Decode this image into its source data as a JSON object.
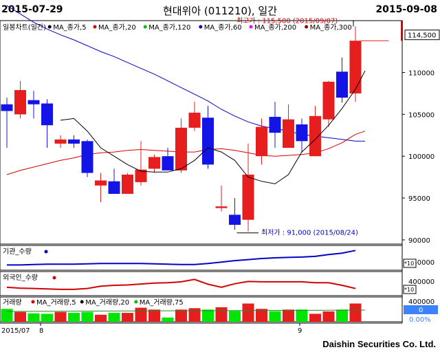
{
  "header": {
    "start_date": "2015-07-29",
    "end_date": "2015-09-08",
    "title": "현대위아 (011210), 일간"
  },
  "legend": {
    "items": [
      {
        "label": "일봉차트(일간)",
        "color": "#000000"
      },
      {
        "label": "MA_종가,5",
        "color": "#000000"
      },
      {
        "label": "MA_종가,20",
        "color": "#d40000"
      },
      {
        "label": "MA_종가,120",
        "color": "#00c000"
      },
      {
        "label": "MA_종가,60",
        "color": "#0000c8"
      },
      {
        "label": "MA_종가,200",
        "color": "#ff00ff"
      },
      {
        "label": "MA_종가,300",
        "color": "#8b0000"
      }
    ]
  },
  "annotations": {
    "high": "최고가 : 115,500 (2015/09/07)",
    "low": "최저가 : 91,000 (2015/08/24)"
  },
  "panels": {
    "inst": {
      "label": "기관_수량"
    },
    "foreign": {
      "label": "외국인_수량"
    },
    "volume": {
      "label": "거래량",
      "legend": [
        "MA_거래량,5",
        "MA_거래량,20",
        "MA_거래량,75"
      ]
    }
  },
  "right_axis": {
    "last_price": "114,500",
    "inst_tick": "550000",
    "inst_unit": "*10",
    "foreign_tick": "400000",
    "foreign_unit": "*10",
    "vol_tick": "400000",
    "vol_box": "0",
    "vol_pct": "0.00%"
  },
  "x_axis": {
    "labels": [
      "2015/07",
      "8",
      "9"
    ]
  },
  "footer": "Daishin Securities Co. Ltd.",
  "colors": {
    "up": "#e61e1e",
    "down": "#1414e6",
    "ma5": "#000000",
    "ma20": "#d40000",
    "ma60": "#0000c8",
    "vol_green": "#00e600",
    "vol_red": "#e61e1e"
  },
  "chart_data": {
    "type": "candlestick",
    "y_ticks": [
      90000,
      95000,
      100000,
      105000,
      110000
    ],
    "y_tick_labels": [
      "90000",
      "95000",
      "100000",
      "105000",
      "110000"
    ],
    "ylim": [
      89500,
      116200
    ],
    "candles": [
      {
        "o": 106200,
        "h": 107000,
        "l": 101000,
        "c": 105400
      },
      {
        "o": 105000,
        "h": 109000,
        "l": 104500,
        "c": 107900
      },
      {
        "o": 106700,
        "h": 107800,
        "l": 104500,
        "c": 106200
      },
      {
        "o": 106300,
        "h": 106800,
        "l": 101000,
        "c": 103700
      },
      {
        "o": 101500,
        "h": 102500,
        "l": 101000,
        "c": 102000
      },
      {
        "o": 102000,
        "h": 102500,
        "l": 101000,
        "c": 101500
      },
      {
        "o": 101800,
        "h": 102000,
        "l": 97500,
        "c": 98000
      },
      {
        "o": 96500,
        "h": 98000,
        "l": 94500,
        "c": 97100
      },
      {
        "o": 97000,
        "h": 98500,
        "l": 95500,
        "c": 95500
      },
      {
        "o": 95500,
        "h": 98000,
        "l": 95500,
        "c": 97800
      },
      {
        "o": 96900,
        "h": 101800,
        "l": 96500,
        "c": 98400
      },
      {
        "o": 98500,
        "h": 100200,
        "l": 98000,
        "c": 99900
      },
      {
        "o": 100000,
        "h": 101000,
        "l": 98500,
        "c": 98300
      },
      {
        "o": 98300,
        "h": 104500,
        "l": 98000,
        "c": 103400
      },
      {
        "o": 103400,
        "h": 106500,
        "l": 103000,
        "c": 105200
      },
      {
        "o": 104600,
        "h": 106000,
        "l": 98500,
        "c": 99000
      },
      {
        "o": 93800,
        "h": 96500,
        "l": 93400,
        "c": 94000
      },
      {
        "o": 93000,
        "h": 95000,
        "l": 91200,
        "c": 91800
      },
      {
        "o": 92400,
        "h": 101500,
        "l": 91000,
        "c": 97800
      },
      {
        "o": 100000,
        "h": 104500,
        "l": 99000,
        "c": 103500
      },
      {
        "o": 104700,
        "h": 106500,
        "l": 101000,
        "c": 102800
      },
      {
        "o": 101000,
        "h": 106200,
        "l": 101000,
        "c": 104400
      },
      {
        "o": 103800,
        "h": 104500,
        "l": 100500,
        "c": 101800
      },
      {
        "o": 100000,
        "h": 106000,
        "l": 100000,
        "c": 104800
      },
      {
        "o": 104400,
        "h": 109000,
        "l": 103500,
        "c": 108900
      },
      {
        "o": 110100,
        "h": 111800,
        "l": 106400,
        "c": 107000
      },
      {
        "o": 107500,
        "h": 115500,
        "l": 106500,
        "c": 113800
      }
    ],
    "ma5": [
      null,
      null,
      null,
      null,
      104300,
      104500,
      103000,
      101000,
      100000,
      99000,
      98200,
      98100,
      98100,
      98500,
      99500,
      101000,
      100500,
      99500,
      97500,
      97000,
      96700,
      97800,
      100500,
      102000,
      103700,
      105700,
      108000
    ],
    "ma20": [
      97800,
      98300,
      98700,
      99100,
      99500,
      99800,
      100200,
      100400,
      100500,
      100700,
      100800,
      100700,
      100600,
      100500,
      100500,
      100800,
      100900,
      100700,
      100400,
      100100,
      100000,
      100100,
      100200,
      100400,
      100900,
      101600,
      102600
    ],
    "ma60": [
      118000,
      117000,
      116000,
      115200,
      114500,
      113900,
      113200,
      112500,
      111900,
      111200,
      110500,
      109800,
      109000,
      108200,
      107400,
      106600,
      105600,
      104800,
      104100,
      103600,
      103300,
      103000,
      102600,
      102400,
      102200,
      102000,
      101800
    ],
    "inst_line": [
      0.14,
      0.14,
      0.16,
      0.18,
      0.18,
      0.18,
      0.2,
      0.22,
      0.22,
      0.22,
      0.22,
      0.2,
      0.18,
      0.16,
      0.16,
      0.22,
      0.3,
      0.38,
      0.44,
      0.5,
      0.54,
      0.56,
      0.58,
      0.62,
      0.72,
      0.8,
      0.95
    ],
    "foreign_line": [
      0.35,
      0.3,
      0.28,
      0.25,
      0.22,
      0.22,
      0.28,
      0.42,
      0.48,
      0.5,
      0.56,
      0.62,
      0.64,
      0.7,
      0.85,
      0.55,
      0.35,
      0.58,
      0.72,
      0.7,
      0.7,
      0.7,
      0.7,
      0.64,
      0.64,
      0.48,
      0.28
    ],
    "volume": [
      0.55,
      0.42,
      0.36,
      0.34,
      0.42,
      0.38,
      0.42,
      0.3,
      0.38,
      0.38,
      0.6,
      0.52,
      0.18,
      0.52,
      0.58,
      0.52,
      0.62,
      0.46,
      0.78,
      0.55,
      0.45,
      0.52,
      0.52,
      0.34,
      0.44,
      0.52,
      0.78
    ]
  }
}
